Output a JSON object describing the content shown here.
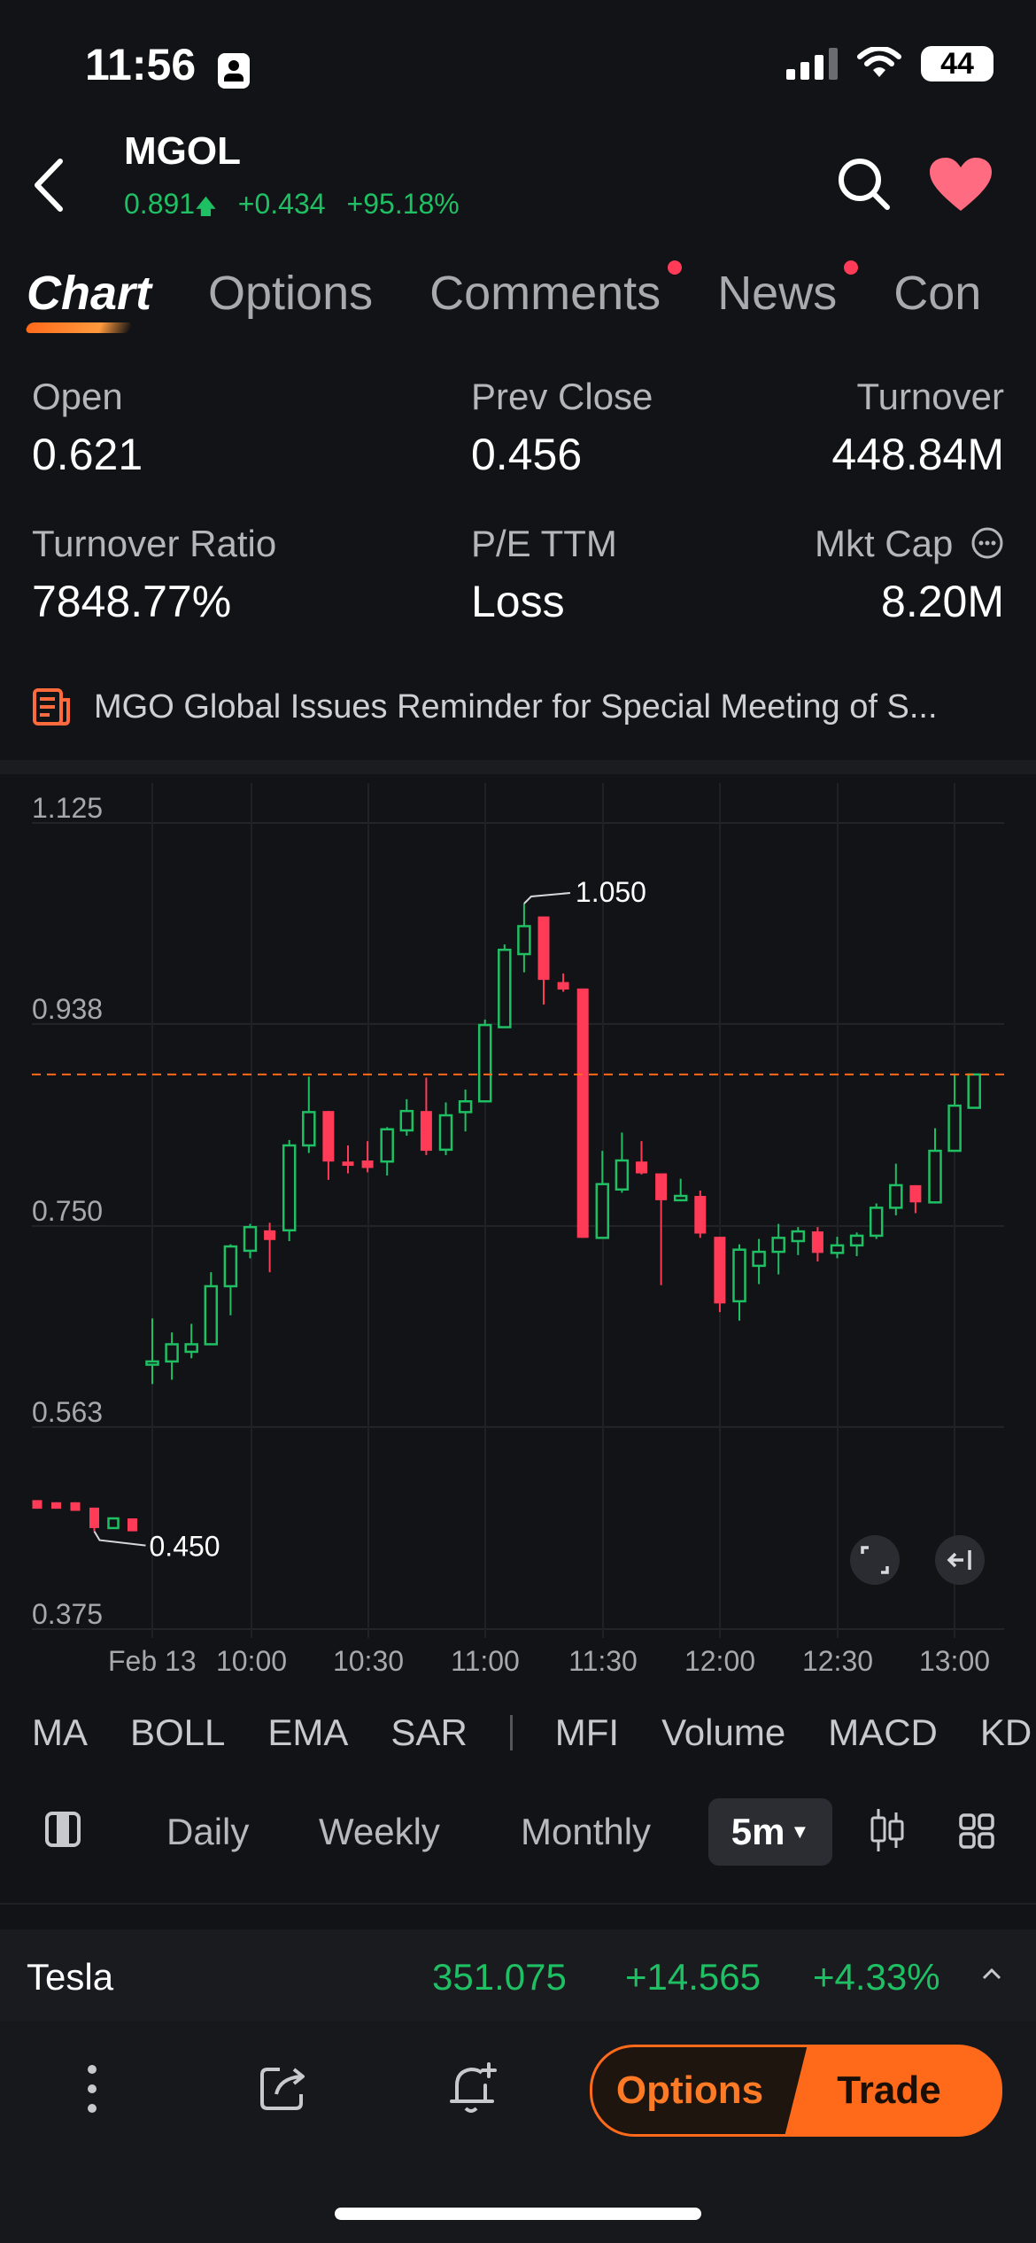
{
  "status_bar": {
    "time": "11:56",
    "battery": "44"
  },
  "header": {
    "ticker": "MGOL",
    "price": "0.891",
    "change": "+0.434",
    "change_pct": "+95.18%",
    "up_arrow": "🡅",
    "back_icon": "back-chevron-icon",
    "search_icon": "search-icon",
    "favorite_icon": "heart-icon"
  },
  "tabs": [
    {
      "label": "Chart",
      "active": true
    },
    {
      "label": "Options"
    },
    {
      "label": "Comments",
      "badge": true
    },
    {
      "label": "News",
      "badge": true
    },
    {
      "label": "Con"
    }
  ],
  "stats": {
    "open_label": "Open",
    "open": "0.621",
    "prev_close_label": "Prev Close",
    "prev_close": "0.456",
    "turnover_label": "Turnover",
    "turnover": "448.84M",
    "turnover_ratio_label": "Turnover Ratio",
    "turnover_ratio": "7848.77%",
    "pe_label": "P/E TTM",
    "pe": "Loss",
    "mkt_cap_label": "Mkt Cap",
    "mkt_cap": "8.20M"
  },
  "news": {
    "text": "MGO Global Issues Reminder for Special Meeting of S..."
  },
  "chart_data": {
    "type": "candlestick",
    "y_ticks": [
      "1.125",
      "0.938",
      "0.750",
      "0.563",
      "0.375"
    ],
    "ylim": [
      0.375,
      1.125
    ],
    "x_ticks": [
      "Feb 13",
      "10:00",
      "10:30",
      "11:00",
      "11:30",
      "12:00",
      "12:30",
      "13:00"
    ],
    "high_annotation": "1.050",
    "low_annotation": "0.450",
    "current_price_line": 0.891,
    "prev_day_candles": [
      {
        "o": 0.495,
        "h": 0.495,
        "l": 0.487,
        "c": 0.487
      },
      {
        "o": 0.493,
        "h": 0.493,
        "l": 0.487,
        "c": 0.487
      },
      {
        "o": 0.493,
        "h": 0.493,
        "l": 0.485,
        "c": 0.485
      },
      {
        "o": 0.488,
        "h": 0.488,
        "l": 0.466,
        "c": 0.469
      },
      {
        "o": 0.469,
        "h": 0.478,
        "l": 0.469,
        "c": 0.478
      },
      {
        "o": 0.478,
        "h": 0.478,
        "l": 0.466,
        "c": 0.466
      }
    ],
    "candles": [
      {
        "o": 0.621,
        "h": 0.664,
        "l": 0.603,
        "c": 0.624
      },
      {
        "o": 0.624,
        "h": 0.651,
        "l": 0.607,
        "c": 0.64
      },
      {
        "o": 0.633,
        "h": 0.659,
        "l": 0.627,
        "c": 0.64
      },
      {
        "o": 0.64,
        "h": 0.707,
        "l": 0.64,
        "c": 0.694
      },
      {
        "o": 0.694,
        "h": 0.733,
        "l": 0.667,
        "c": 0.731
      },
      {
        "o": 0.727,
        "h": 0.752,
        "l": 0.72,
        "c": 0.749
      },
      {
        "o": 0.746,
        "h": 0.753,
        "l": 0.707,
        "c": 0.737
      },
      {
        "o": 0.746,
        "h": 0.83,
        "l": 0.736,
        "c": 0.825
      },
      {
        "o": 0.825,
        "h": 0.889,
        "l": 0.818,
        "c": 0.856
      },
      {
        "o": 0.857,
        "h": 0.857,
        "l": 0.793,
        "c": 0.81
      },
      {
        "o": 0.81,
        "h": 0.825,
        "l": 0.799,
        "c": 0.806
      },
      {
        "o": 0.811,
        "h": 0.829,
        "l": 0.8,
        "c": 0.804
      },
      {
        "o": 0.81,
        "h": 0.842,
        "l": 0.797,
        "c": 0.84
      },
      {
        "o": 0.839,
        "h": 0.868,
        "l": 0.834,
        "c": 0.857
      },
      {
        "o": 0.857,
        "h": 0.888,
        "l": 0.816,
        "c": 0.82
      },
      {
        "o": 0.821,
        "h": 0.865,
        "l": 0.816,
        "c": 0.853
      },
      {
        "o": 0.856,
        "h": 0.877,
        "l": 0.838,
        "c": 0.866
      },
      {
        "o": 0.866,
        "h": 0.942,
        "l": 0.866,
        "c": 0.937
      },
      {
        "o": 0.935,
        "h": 1.012,
        "l": 0.935,
        "c": 1.007
      },
      {
        "o": 1.003,
        "h": 1.05,
        "l": 0.986,
        "c": 1.029
      },
      {
        "o": 1.038,
        "h": 1.038,
        "l": 0.956,
        "c": 0.979
      },
      {
        "o": 0.977,
        "h": 0.985,
        "l": 0.968,
        "c": 0.97
      },
      {
        "o": 0.971,
        "h": 0.971,
        "l": 0.739,
        "c": 0.739
      },
      {
        "o": 0.739,
        "h": 0.82,
        "l": 0.739,
        "c": 0.789
      },
      {
        "o": 0.784,
        "h": 0.837,
        "l": 0.781,
        "c": 0.811
      },
      {
        "o": 0.81,
        "h": 0.829,
        "l": 0.798,
        "c": 0.799
      },
      {
        "o": 0.799,
        "h": 0.799,
        "l": 0.695,
        "c": 0.774
      },
      {
        "o": 0.774,
        "h": 0.794,
        "l": 0.773,
        "c": 0.778
      },
      {
        "o": 0.778,
        "h": 0.783,
        "l": 0.739,
        "c": 0.743
      },
      {
        "o": 0.74,
        "h": 0.74,
        "l": 0.67,
        "c": 0.678
      },
      {
        "o": 0.68,
        "h": 0.733,
        "l": 0.662,
        "c": 0.728
      },
      {
        "o": 0.713,
        "h": 0.738,
        "l": 0.696,
        "c": 0.726
      },
      {
        "o": 0.726,
        "h": 0.752,
        "l": 0.705,
        "c": 0.739
      },
      {
        "o": 0.736,
        "h": 0.749,
        "l": 0.723,
        "c": 0.745
      },
      {
        "o": 0.745,
        "h": 0.749,
        "l": 0.717,
        "c": 0.725
      },
      {
        "o": 0.725,
        "h": 0.74,
        "l": 0.72,
        "c": 0.732
      },
      {
        "o": 0.732,
        "h": 0.744,
        "l": 0.722,
        "c": 0.741
      },
      {
        "o": 0.741,
        "h": 0.771,
        "l": 0.738,
        "c": 0.767
      },
      {
        "o": 0.767,
        "h": 0.808,
        "l": 0.76,
        "c": 0.788
      },
      {
        "o": 0.788,
        "h": 0.788,
        "l": 0.762,
        "c": 0.772
      },
      {
        "o": 0.772,
        "h": 0.841,
        "l": 0.772,
        "c": 0.82
      },
      {
        "o": 0.82,
        "h": 0.891,
        "l": 0.82,
        "c": 0.862
      },
      {
        "o": 0.86,
        "h": 0.891,
        "l": 0.86,
        "c": 0.891
      }
    ]
  },
  "chart_controls": {
    "expand_icon": "expand-icon",
    "back_to_latest_icon": "scroll-to-latest-icon"
  },
  "indicators": [
    "MA",
    "BOLL",
    "EMA",
    "SAR",
    "MFI",
    "Volume",
    "MACD",
    "KD"
  ],
  "periods": {
    "daily": "Daily",
    "weekly": "Weekly",
    "monthly": "Monthly",
    "selected": "5m"
  },
  "tesla_strip": {
    "name": "Tesla",
    "price": "351.075",
    "change": "+14.565",
    "change_pct": "+4.33%"
  },
  "bottom_bar": {
    "options": "Options",
    "trade": "Trade"
  },
  "colors": {
    "up": "#1fbf64",
    "down": "#ff3b57",
    "accent": "#ff6a1a",
    "heart": "#ff6b81"
  }
}
